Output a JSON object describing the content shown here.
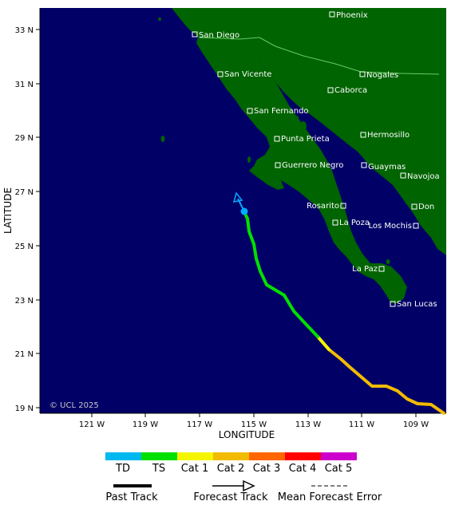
{
  "map": {
    "ocean_color": "#000066",
    "land_color": "#006400",
    "border_color": "#66cc66",
    "credit": "© UCL 2025",
    "x_axis_label": "LONGITUDE",
    "y_axis_label": "LATITUDE",
    "x_ticks": [
      "121 W",
      "119 W",
      "117 W",
      "115 W",
      "113 W",
      "111 W",
      "109 W"
    ],
    "y_ticks": [
      "33 N",
      "31 N",
      "29 N",
      "27 N",
      "25 N",
      "23 N",
      "21 N",
      "19 N"
    ],
    "cities": [
      {
        "name": "Phoenix"
      },
      {
        "name": "San Diego"
      },
      {
        "name": "Nogales"
      },
      {
        "name": "San Vicente"
      },
      {
        "name": "Caborca"
      },
      {
        "name": "San Fernando"
      },
      {
        "name": "Hermosillo"
      },
      {
        "name": "Punta Prieta"
      },
      {
        "name": "Guerrero Negro"
      },
      {
        "name": "Guaymas"
      },
      {
        "name": "Navojoa"
      },
      {
        "name": "Rosarito"
      },
      {
        "name": "Don"
      },
      {
        "name": "La Poza"
      },
      {
        "name": "Los Mochis"
      },
      {
        "name": "La Paz"
      },
      {
        "name": "San Lucas"
      }
    ],
    "track_intensity_colors": {
      "TS": "#00e000",
      "Cat 1": "#f5f500",
      "Cat 2": "#f2bb00",
      "current_position": "#00aaff",
      "forecast_arrow": "#00aaff"
    }
  },
  "legend": {
    "categories": [
      {
        "label": "TD",
        "color": "#00b8f0"
      },
      {
        "label": "TS",
        "color": "#00e000"
      },
      {
        "label": "Cat 1",
        "color": "#f5f500"
      },
      {
        "label": "Cat 2",
        "color": "#f2bb00"
      },
      {
        "label": "Cat 3",
        "color": "#ff6600"
      },
      {
        "label": "Cat 4",
        "color": "#ff0000"
      },
      {
        "label": "Cat 5",
        "color": "#cc00cc"
      }
    ],
    "past_track": "Past Track",
    "forecast_track": "Forecast Track",
    "mean_forecast_error": "Mean Forecast Error"
  }
}
